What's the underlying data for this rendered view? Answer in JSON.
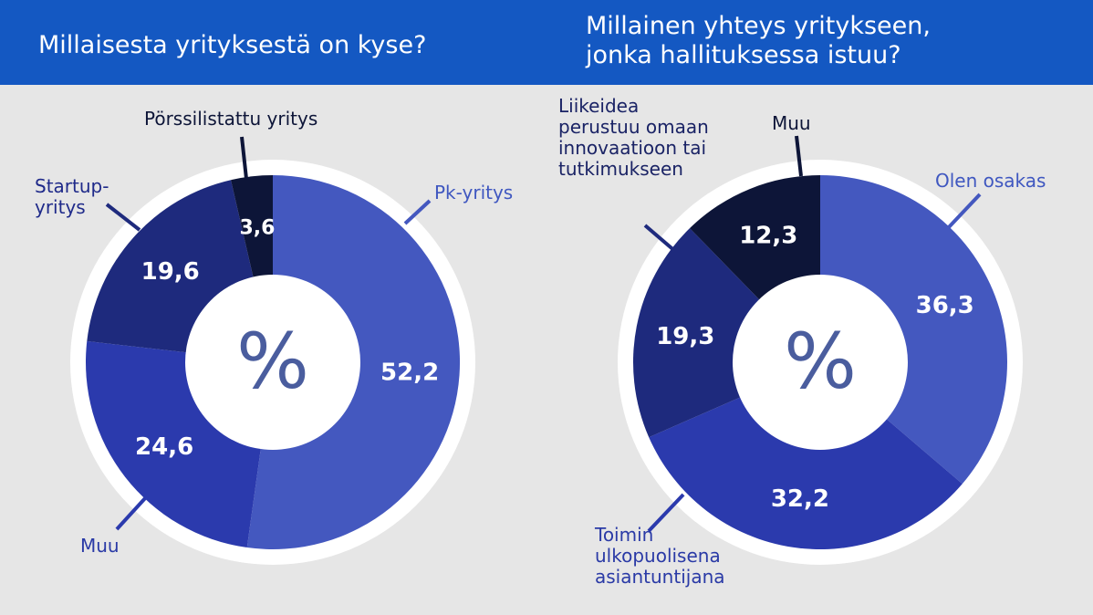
{
  "colors": {
    "header": "#1458c2",
    "background": "#e6e6e6",
    "ring": "#ffffff",
    "label_light": "#3f57c0",
    "label_mid": "#2a3aa6",
    "label_dark": "#1a2365",
    "label_darkest": "#0d1538"
  },
  "center_symbol": "%",
  "chart_data": [
    {
      "type": "pie",
      "title": "Millaisesta yrityksestä on kyse?",
      "unit": "%",
      "slices": [
        {
          "label": "Pk-yritys",
          "value": 52.2,
          "display": "52,2",
          "color": "#4458bf"
        },
        {
          "label": "Muu",
          "value": 24.6,
          "display": "24,6",
          "color": "#2b3aad"
        },
        {
          "label": "Startup-\nyritys",
          "value": 19.6,
          "display": "19,6",
          "color": "#1e2a7d"
        },
        {
          "label": "Pörssilistattu yritys",
          "value": 3.6,
          "display": "3,6",
          "color": "#0d1538"
        }
      ]
    },
    {
      "type": "pie",
      "title": "Millainen yhteys yritykseen,\njonka hallituksessa istuu?",
      "unit": "%",
      "slices": [
        {
          "label": "Olen osakas",
          "value": 36.3,
          "display": "36,3",
          "color": "#4458bf"
        },
        {
          "label": "Toimin\nulkopuolisena\nasiantuntijana",
          "value": 32.2,
          "display": "32,2",
          "color": "#2b3aad"
        },
        {
          "label": "Liikeidea\nperustuu omaan\ninnovaatioon tai\ntutkimukseen",
          "value": 19.3,
          "display": "19,3",
          "color": "#1e2a7d"
        },
        {
          "label": "Muu",
          "value": 12.3,
          "display": "12,3",
          "color": "#0d1538"
        }
      ]
    }
  ]
}
